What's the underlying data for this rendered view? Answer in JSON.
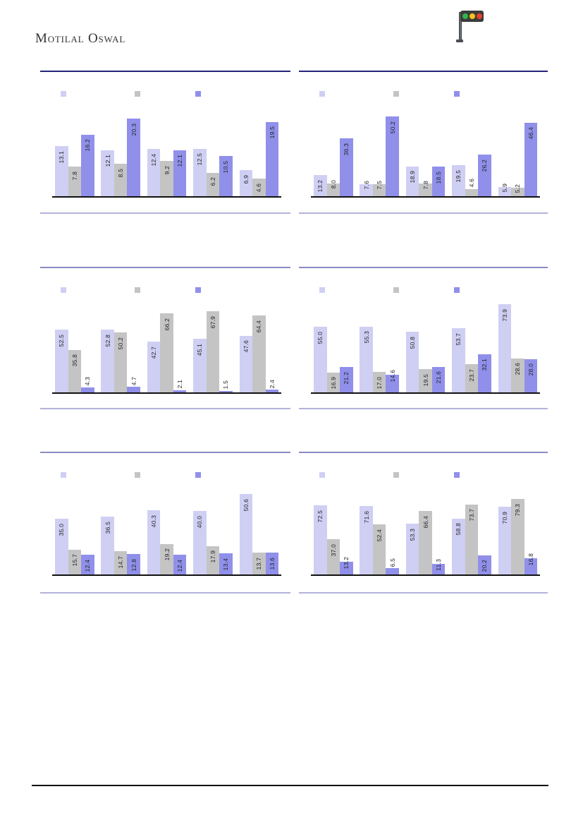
{
  "page": {
    "brand": "Motilal Oswal"
  },
  "icons": {
    "traffic_light": {
      "name": "traffic-light-icon",
      "light_colors": [
        "#33b54a",
        "#f5c518",
        "#e8412f"
      ]
    }
  },
  "colors": {
    "series": [
      "#CFCFF4",
      "#C4C4C4",
      "#9090EB"
    ],
    "row1_top_border": "#24247B",
    "row_top_border": "#8A8AC6",
    "block_bottom_border": "#B3B3DA",
    "axis": "#111111",
    "footer_rule": "#111111",
    "label_text": "#1F1F1F",
    "brand_text": "#333333"
  },
  "chart_data": [
    {
      "id": "top-left",
      "type": "bar",
      "title": "",
      "xlabel": "",
      "ylabel": "",
      "ymax": 25,
      "categories": [
        "",
        "",
        "",
        "",
        ""
      ],
      "legend": {
        "visible": true,
        "position": "top",
        "labels": [
          "",
          "",
          ""
        ]
      },
      "series": [
        {
          "name": "",
          "color_index": 0,
          "values": [
            13.1,
            12.1,
            12.4,
            12.5,
            6.9
          ]
        },
        {
          "name": "",
          "color_index": 1,
          "values": [
            7.8,
            8.5,
            9.2,
            6.2,
            4.6
          ]
        },
        {
          "name": "",
          "color_index": 2,
          "values": [
            16.2,
            20.3,
            12.1,
            10.5,
            19.5
          ]
        }
      ]
    },
    {
      "id": "top-right",
      "type": "bar",
      "title": "",
      "xlabel": "",
      "ylabel": "",
      "ymax": 60,
      "categories": [
        "",
        "",
        "",
        "",
        ""
      ],
      "legend": {
        "visible": true,
        "position": "top",
        "labels": [
          "",
          "",
          ""
        ]
      },
      "series": [
        {
          "name": "",
          "color_index": 0,
          "values": [
            13.2,
            7.6,
            18.9,
            19.5,
            5.9
          ]
        },
        {
          "name": "",
          "color_index": 1,
          "values": [
            8.0,
            7.5,
            7.8,
            4.6,
            5.2
          ]
        },
        {
          "name": "",
          "color_index": 2,
          "values": [
            36.3,
            50.2,
            18.5,
            26.2,
            46.4
          ]
        }
      ]
    },
    {
      "id": "middle-left",
      "type": "bar",
      "title": "",
      "xlabel": "",
      "ylabel": "",
      "ymax": 80,
      "categories": [
        "",
        "",
        "",
        "",
        ""
      ],
      "legend": {
        "visible": true,
        "position": "top",
        "labels": [
          "",
          "",
          ""
        ]
      },
      "series": [
        {
          "name": "",
          "color_index": 0,
          "values": [
            52.5,
            52.8,
            42.7,
            45.1,
            47.6
          ]
        },
        {
          "name": "",
          "color_index": 1,
          "values": [
            35.8,
            50.2,
            66.2,
            67.9,
            64.4
          ]
        },
        {
          "name": "",
          "color_index": 2,
          "values": [
            4.3,
            4.7,
            2.1,
            1.5,
            2.4
          ]
        }
      ]
    },
    {
      "id": "middle-right",
      "type": "bar",
      "title": "",
      "xlabel": "",
      "ylabel": "",
      "ymax": 80,
      "categories": [
        "",
        "",
        "",
        "",
        ""
      ],
      "legend": {
        "visible": true,
        "position": "top",
        "labels": [
          "",
          "",
          ""
        ]
      },
      "series": [
        {
          "name": "",
          "color_index": 0,
          "values": [
            55.0,
            55.3,
            50.8,
            53.7,
            73.9
          ]
        },
        {
          "name": "",
          "color_index": 1,
          "values": [
            16.9,
            17.0,
            19.5,
            23.7,
            28.6
          ]
        },
        {
          "name": "",
          "color_index": 2,
          "values": [
            21.2,
            14.6,
            21.6,
            32.1,
            28.0
          ]
        }
      ]
    },
    {
      "id": "bottom-left",
      "type": "bar",
      "title": "",
      "xlabel": "",
      "ylabel": "",
      "ymax": 60,
      "categories": [
        "",
        "",
        "",
        "",
        ""
      ],
      "legend": {
        "visible": true,
        "position": "top",
        "labels": [
          "",
          "",
          ""
        ]
      },
      "series": [
        {
          "name": "",
          "color_index": 0,
          "values": [
            35.0,
            36.5,
            40.3,
            40.0,
            50.6
          ]
        },
        {
          "name": "",
          "color_index": 1,
          "values": [
            15.7,
            14.7,
            19.2,
            17.9,
            13.7
          ]
        },
        {
          "name": "",
          "color_index": 2,
          "values": [
            12.4,
            12.8,
            12.4,
            13.4,
            13.6
          ]
        }
      ]
    },
    {
      "id": "bottom-right",
      "type": "bar",
      "title": "",
      "xlabel": "",
      "ylabel": "",
      "ymax": 100,
      "categories": [
        "",
        "",
        "",
        "",
        ""
      ],
      "legend": {
        "visible": true,
        "position": "top",
        "labels": [
          "",
          "",
          ""
        ]
      },
      "series": [
        {
          "name": "",
          "color_index": 0,
          "values": [
            72.5,
            71.6,
            53.3,
            58.8,
            70.9
          ]
        },
        {
          "name": "",
          "color_index": 1,
          "values": [
            37.0,
            52.4,
            66.4,
            73.7,
            79.3
          ]
        },
        {
          "name": "",
          "color_index": 2,
          "values": [
            13.2,
            6.5,
            11.3,
            20.2,
            16.8
          ]
        }
      ]
    }
  ]
}
